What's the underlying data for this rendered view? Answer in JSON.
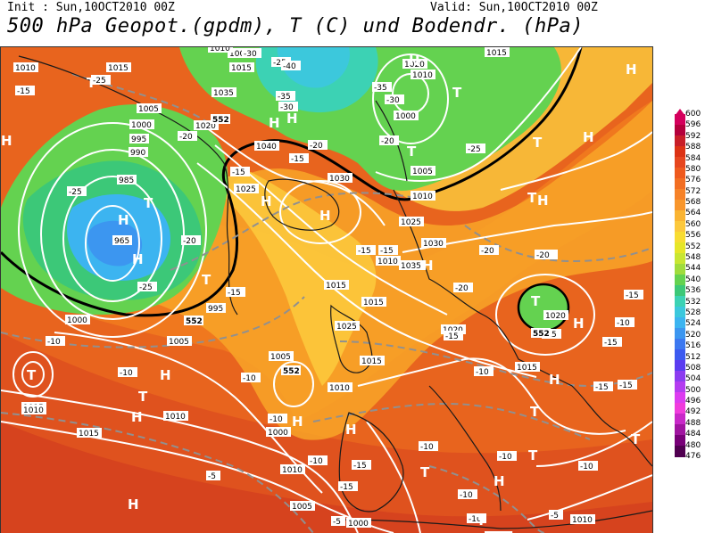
{
  "header": {
    "init": "Init : Sun,10OCT2010 00Z",
    "valid": "Valid: Sun,10OCT2010 00Z",
    "title": "500 hPa Geopot.(gpdm), T (C) und Bodendr. (hPa)"
  },
  "colorbar": {
    "levels": [
      "600",
      "596",
      "592",
      "588",
      "584",
      "580",
      "576",
      "572",
      "568",
      "564",
      "560",
      "556",
      "552",
      "548",
      "544",
      "540",
      "536",
      "532",
      "528",
      "524",
      "520",
      "516",
      "512",
      "508",
      "504",
      "500",
      "496",
      "492",
      "488",
      "484",
      "480",
      "476"
    ],
    "colors": [
      "#d4005c",
      "#b4003c",
      "#c81e28",
      "#dc3214",
      "#e6461e",
      "#ee5a1e",
      "#f26e22",
      "#f68228",
      "#f8962c",
      "#fab432",
      "#fcc83c",
      "#f8dc32",
      "#e6e628",
      "#c8e632",
      "#a0dc3c",
      "#64d250",
      "#3cc878",
      "#3cd2b4",
      "#3cc8dc",
      "#3cb4f0",
      "#3c96f0",
      "#3c78f0",
      "#3c5af0",
      "#5a3cf0",
      "#8c3cf0",
      "#b43cf0",
      "#dc3cf0",
      "#f03cdc",
      "#c828c8",
      "#a014a0",
      "#780078",
      "#500050"
    ]
  },
  "map": {
    "pressure_labels": [
      "1010",
      "1015",
      "1005",
      "1000",
      "995",
      "990",
      "985",
      "965",
      "1020",
      "1025",
      "1030",
      "1035",
      "1040",
      "1015",
      "1020",
      "1025",
      "1030",
      "1035",
      "1000",
      "1005",
      "1010",
      "1015",
      "1020",
      "1025",
      "1015",
      "1010",
      "1005",
      "1000",
      "995",
      "1000",
      "1005",
      "1010",
      "1015",
      "1010",
      "1005",
      "1000",
      "1010",
      "1015",
      "1020",
      "1015",
      "1010",
      "1015",
      "1010",
      "1005",
      "1015",
      "1010",
      "1010"
    ],
    "temperature_labels": [
      "-15",
      "-25",
      "-25",
      "-25",
      "-20",
      "-15",
      "-15",
      "-20",
      "-25",
      "-35",
      "-30",
      "-40",
      "-35",
      "-30",
      "-30",
      "-20",
      "-15",
      "-25",
      "-15",
      "-20",
      "-15",
      "-15",
      "-20",
      "-20",
      "-15",
      "-20",
      "-15",
      "-10",
      "-10",
      "-10",
      "-10",
      "-10",
      "-10",
      "-10",
      "-15",
      "-15",
      "-10",
      "-15",
      "-5",
      "-5",
      "-10",
      "-10",
      "-5",
      "-10",
      "-20",
      "-15",
      "-10",
      "-15",
      "-10"
    ],
    "gpdm_labels": [
      "552",
      "552",
      "552",
      "552"
    ],
    "high_symbol": "H",
    "low_symbol": "T"
  }
}
